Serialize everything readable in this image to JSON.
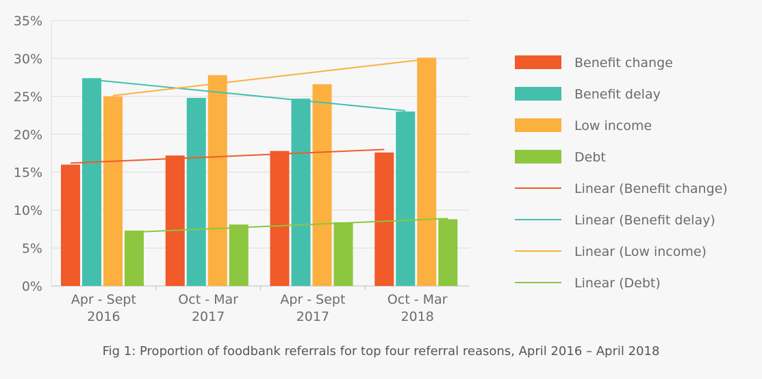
{
  "chart_data": {
    "type": "bar",
    "title": "Fig 1: Proportion of foodbank referrals for top four referral reasons, April 2016 – April 2018",
    "xlabel": "",
    "ylabel": "",
    "ylim": [
      0,
      35
    ],
    "yticks": [
      "0%",
      "5%",
      "10%",
      "15%",
      "20%",
      "25%",
      "30%",
      "35%"
    ],
    "ytick_values": [
      0,
      5,
      10,
      15,
      20,
      25,
      30,
      35
    ],
    "grid": true,
    "legend_position": "right",
    "categories": [
      [
        "Apr - Sept",
        "2016"
      ],
      [
        "Oct - Mar",
        "2017"
      ],
      [
        "Apr - Sept",
        "2017"
      ],
      [
        "Oct - Mar",
        "2018"
      ]
    ],
    "series": [
      {
        "name": "Benefit change",
        "color": "#f15a29",
        "values": [
          16.0,
          17.2,
          17.8,
          17.6
        ]
      },
      {
        "name": "Benefit delay",
        "color": "#44bfae",
        "values": [
          27.4,
          24.8,
          24.7,
          23.0
        ]
      },
      {
        "name": "Low income",
        "color": "#fbb040",
        "values": [
          25.0,
          27.8,
          26.6,
          30.1
        ]
      },
      {
        "name": "Debt",
        "color": "#8dc63f",
        "values": [
          7.3,
          8.1,
          8.4,
          8.8
        ]
      }
    ],
    "trendlines": [
      {
        "name": "Linear (Benefit change)",
        "color": "#f15a29",
        "start": 16.2,
        "end": 18.0
      },
      {
        "name": "Linear (Benefit delay)",
        "color": "#44bfae",
        "start": 27.2,
        "end": 23.1
      },
      {
        "name": "Linear (Low income)",
        "color": "#fbb040",
        "start": 25.1,
        "end": 29.9
      },
      {
        "name": "Linear (Debt)",
        "color": "#8dc63f",
        "start": 7.1,
        "end": 8.9
      }
    ]
  }
}
